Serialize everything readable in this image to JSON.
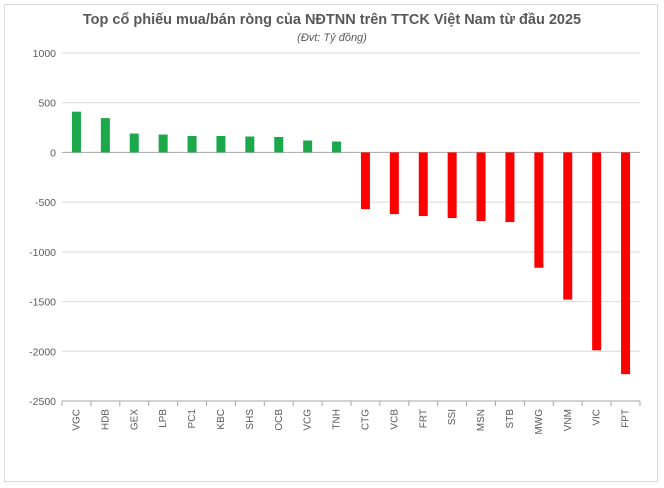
{
  "chart_data": {
    "type": "bar",
    "title": "Top cổ phiếu mua/bán ròng của NĐTNN trên TTCK Việt Nam từ đầu 2025",
    "subtitle": "(Đvt: Tỷ đồng)",
    "xlabel": "",
    "ylabel": "",
    "ylim": [
      -2500,
      1000
    ],
    "yticks": [
      "1000",
      "500",
      "0",
      "-500",
      "-1000",
      "-1500",
      "-2000",
      "-2500"
    ],
    "grid": true,
    "legend": "none",
    "categories": [
      "VGC",
      "HDB",
      "GEX",
      "LPB",
      "PC1",
      "KBC",
      "SHS",
      "OCB",
      "VCG",
      "TNH",
      "CTG",
      "VCB",
      "FRT",
      "SSI",
      "MSN",
      "STB",
      "MWG",
      "VNM",
      "VIC",
      "FPT"
    ],
    "values": [
      410,
      345,
      190,
      180,
      165,
      165,
      160,
      155,
      120,
      110,
      -570,
      -620,
      -640,
      -660,
      -690,
      -700,
      -1160,
      -1480,
      -1990,
      -2230
    ],
    "colors": {
      "positive": "#1aa84b",
      "negative": "#ff0000",
      "grid": "#d9d9d9",
      "axis": "#a6a6a6"
    }
  }
}
